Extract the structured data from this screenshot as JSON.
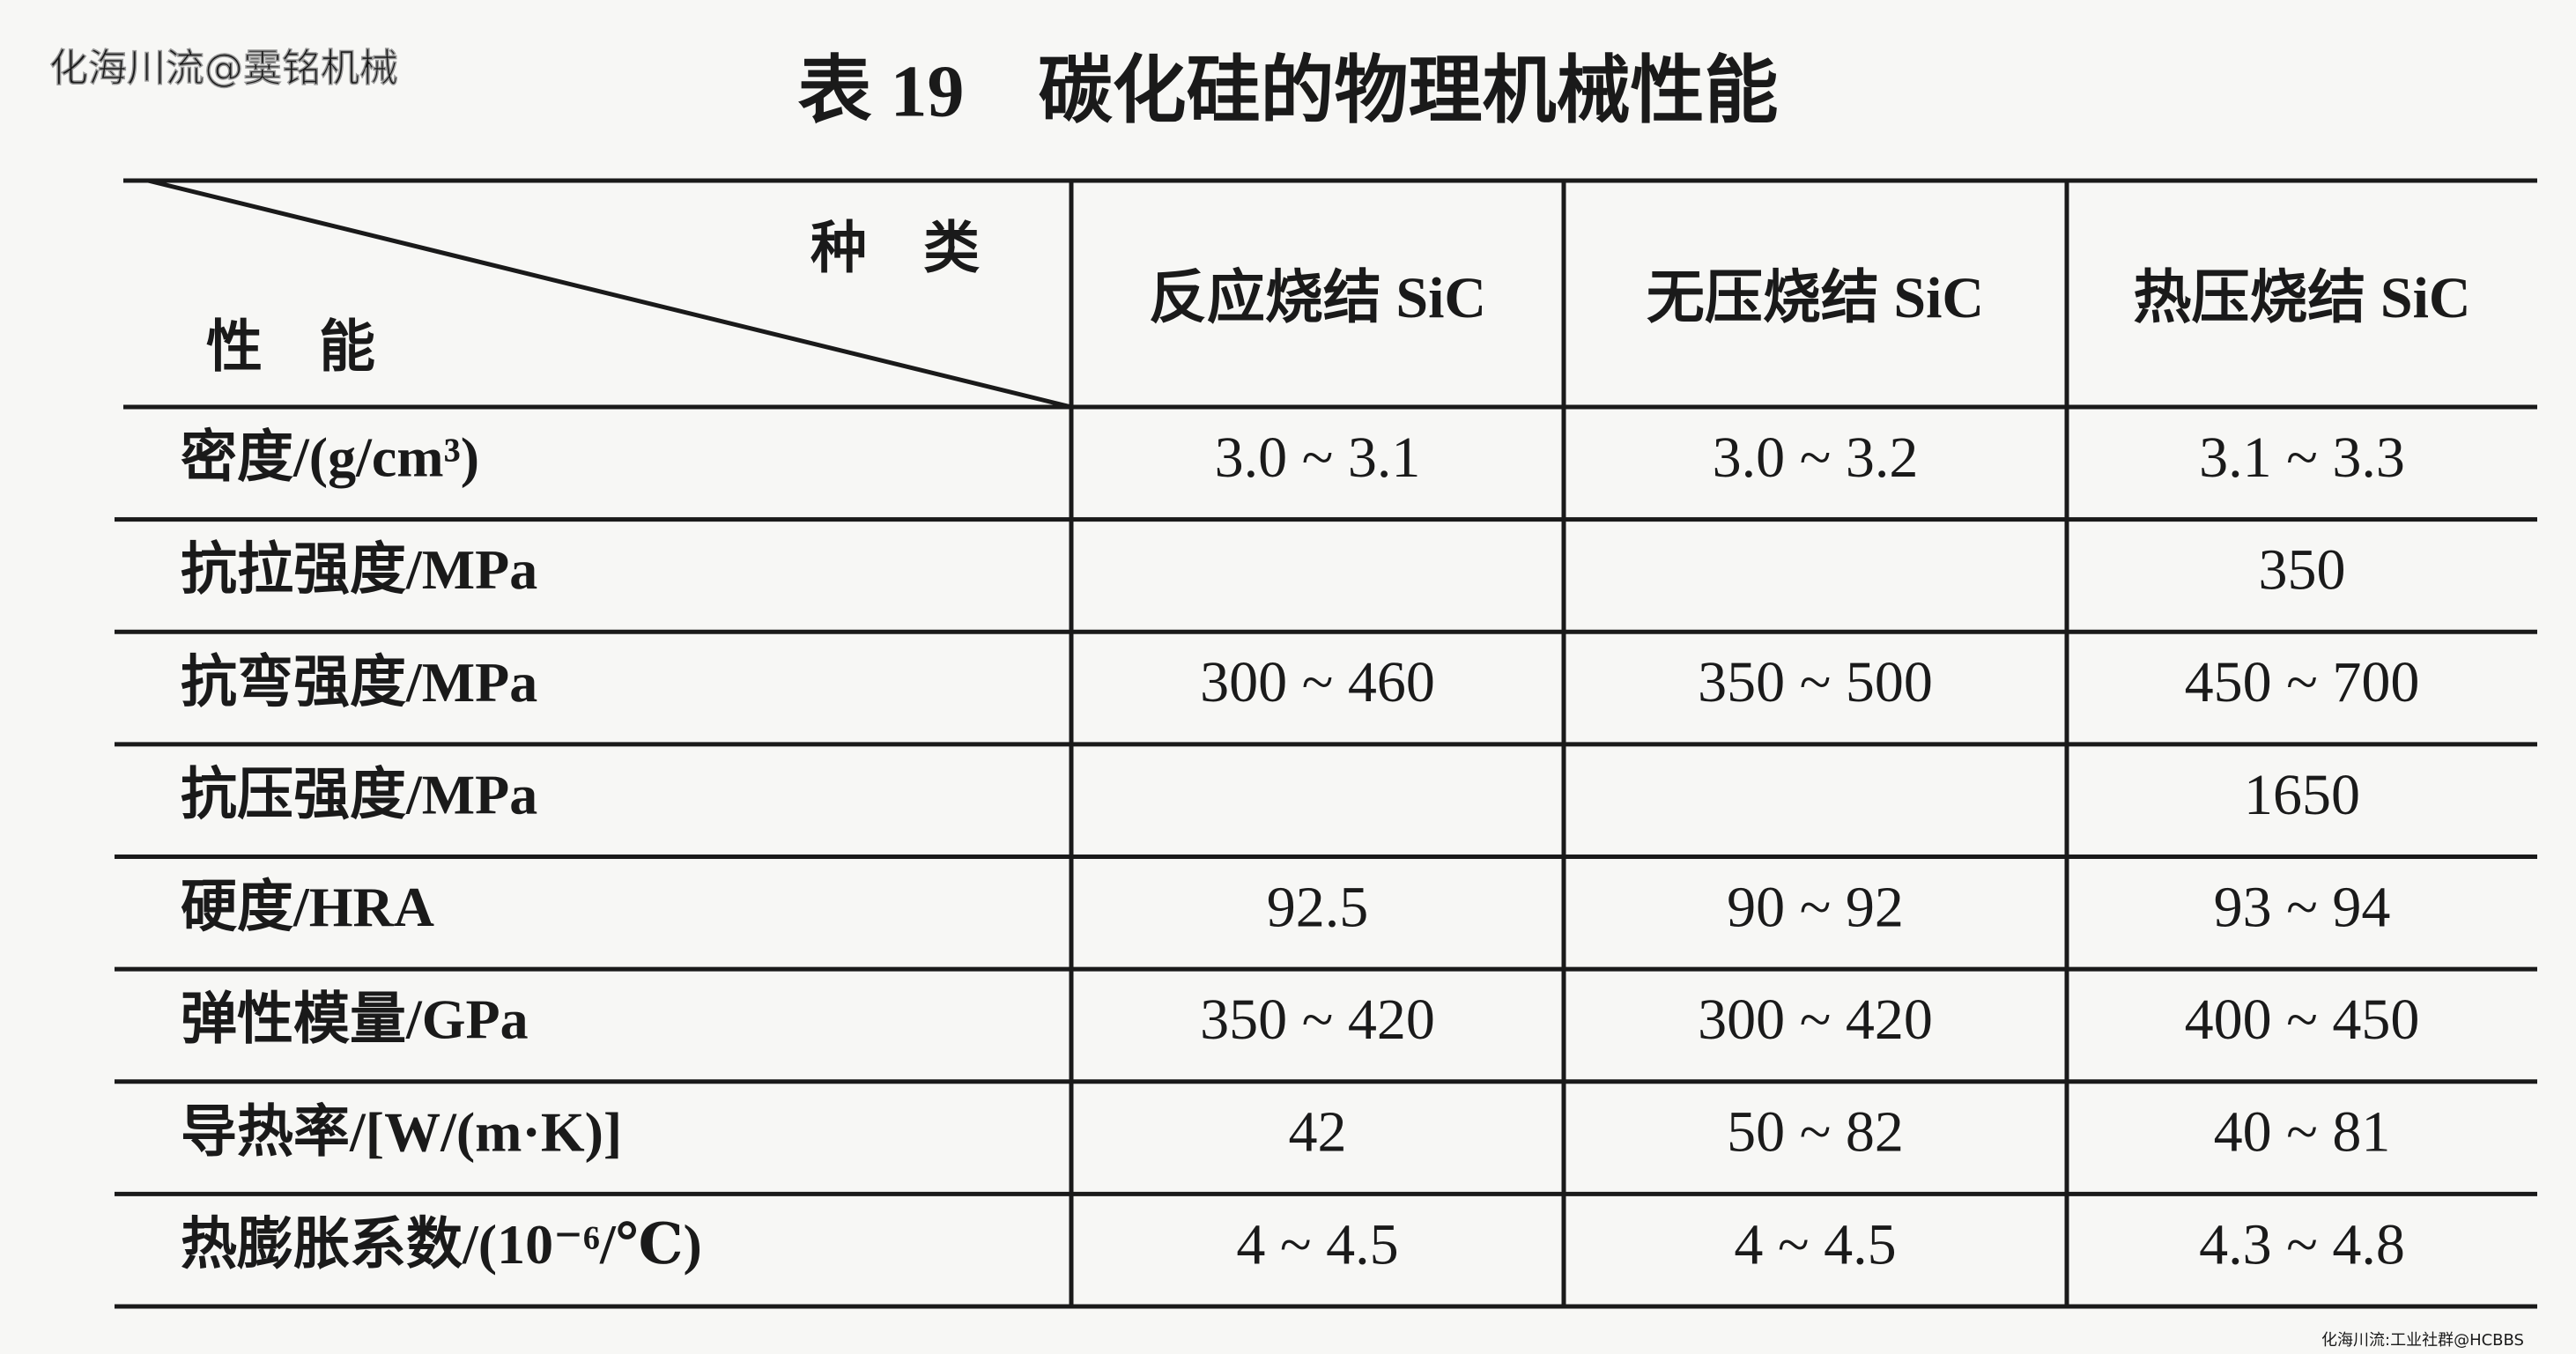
{
  "watermark": "化海川流@霙铭机械",
  "footer_watermark": "化海川流:工业社群@HCBBS",
  "title": "表 19　碳化硅的物理机械性能",
  "table": {
    "corner_top": "种　类",
    "corner_bottom": "性　能",
    "columns": [
      "反应烧结 SiC",
      "无压烧结 SiC",
      "热压烧结 SiC"
    ],
    "rows": [
      {
        "label": "密度/(g/cm³)",
        "values": [
          "3.0 ~ 3.1",
          "3.0 ~ 3.2",
          "3.1 ~ 3.3"
        ]
      },
      {
        "label": "抗拉强度/MPa",
        "values": [
          null,
          null,
          "350"
        ]
      },
      {
        "label": "抗弯强度/MPa",
        "values": [
          "300 ~ 460",
          "350 ~ 500",
          "450 ~ 700"
        ]
      },
      {
        "label": "抗压强度/MPa",
        "values": [
          null,
          null,
          "1650"
        ]
      },
      {
        "label": "硬度/HRA",
        "values": [
          "92.5",
          "90 ~ 92",
          "93 ~ 94"
        ]
      },
      {
        "label": "弹性模量/GPa",
        "values": [
          "350 ~ 420",
          "300 ~ 420",
          "400 ~ 450"
        ]
      },
      {
        "label": "导热率/[W/(m·K)]",
        "values": [
          "42",
          "50 ~ 82",
          "40 ~ 81"
        ]
      },
      {
        "label": "热膨胀系数/(10⁻⁶/℃)",
        "values": [
          "4 ~ 4.5",
          "4 ~ 4.5",
          "4.3 ~ 4.8"
        ]
      }
    ]
  }
}
